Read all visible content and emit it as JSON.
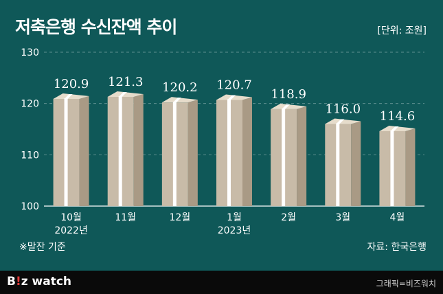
{
  "header": {
    "title": "저축은행 수신잔액 추이",
    "unit": "[단위: 조원]"
  },
  "footnote": "※말잔 기준",
  "source": "자료: 한국은행",
  "footer": {
    "logo_b": "B",
    "logo_i": "!",
    "logo_rest": "z watch",
    "credit": "그래픽=비즈워치"
  },
  "colors": {
    "background": "#0f5858",
    "block_front": "#c8bba8",
    "block_side": "#a99a85",
    "block_top": "#e6dccb",
    "band": "#ffffff",
    "grid": "#5f8f8f"
  },
  "chart_data": {
    "type": "bar",
    "categories": [
      [
        "10월",
        "2022년"
      ],
      [
        "11월"
      ],
      [
        "12월"
      ],
      [
        "1월",
        "2023년"
      ],
      [
        "2월"
      ],
      [
        "3월"
      ],
      [
        "4월"
      ]
    ],
    "values": [
      120.9,
      121.3,
      120.2,
      120.7,
      118.9,
      116.0,
      114.6
    ],
    "value_labels": [
      "120.9",
      "121.3",
      "120.2",
      "120.7",
      "118.9",
      "116.0",
      "114.6"
    ],
    "ylim": [
      100,
      130
    ],
    "yticks": [
      100,
      110,
      120,
      130
    ],
    "grid": true,
    "title": "저축은행 수신잔액 추이",
    "ylabel": "[단위: 조원]",
    "xlabel": ""
  }
}
